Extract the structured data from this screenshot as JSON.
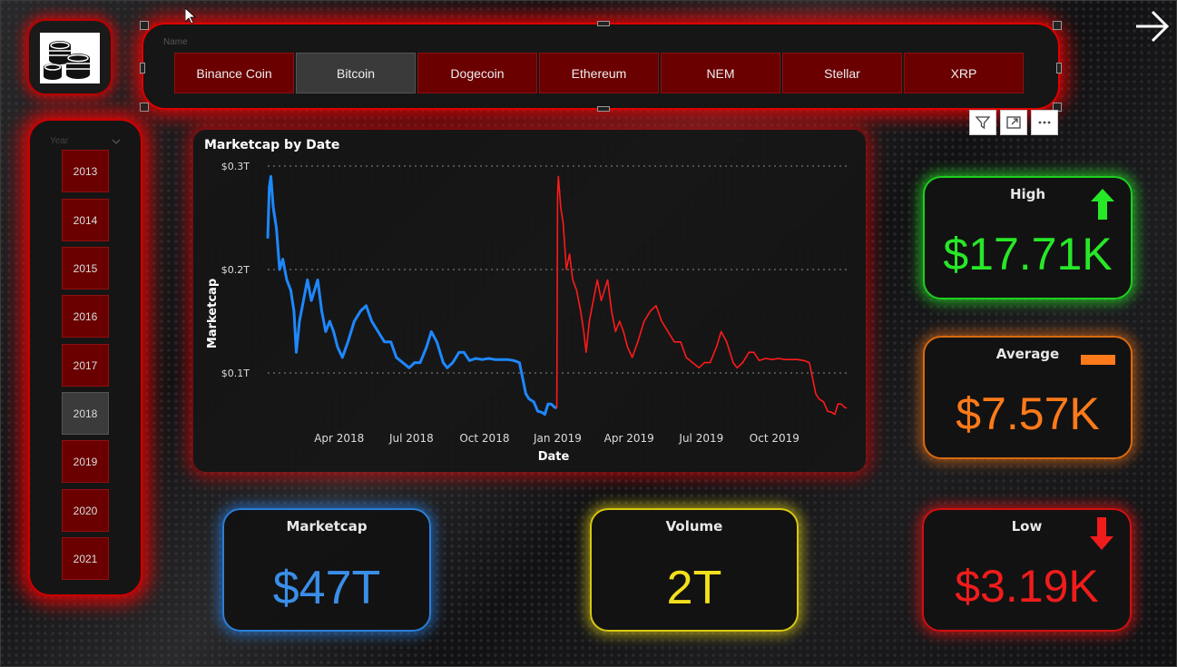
{
  "name_slicer": {
    "header": "Name",
    "options": [
      "Binance Coin",
      "Bitcoin",
      "Dogecoin",
      "Ethereum",
      "NEM",
      "Stellar",
      "XRP"
    ],
    "selected": "Bitcoin"
  },
  "year_slicer": {
    "header": "Year",
    "options": [
      "2013",
      "2014",
      "2015",
      "2016",
      "2017",
      "2018",
      "2019",
      "2020",
      "2021"
    ],
    "selected": "2018"
  },
  "icons": {
    "logo": "coins-icon",
    "next_page": "arrow-right-icon",
    "filter": "filter-icon",
    "focus": "focus-mode-icon",
    "more": "more-options-icon",
    "up": "arrow-up-icon",
    "down": "arrow-down-icon",
    "avg": "dash-icon"
  },
  "kpis": {
    "high": {
      "title": "High",
      "value": "$17.71K",
      "color": "#27e827"
    },
    "average": {
      "title": "Average",
      "value": "$7.57K",
      "color": "#ff7a1a"
    },
    "low": {
      "title": "Low",
      "value": "$3.19K",
      "color": "#f01c1c"
    },
    "marketcap": {
      "title": "Marketcap",
      "value": "$47T",
      "color": "#3a8ee8"
    },
    "volume": {
      "title": "Volume",
      "value": "2T",
      "color": "#f3e01c"
    }
  },
  "chart_data": {
    "type": "line",
    "title": "Marketcap by Date",
    "xlabel": "Date",
    "ylabel": "Marketcap",
    "y_ticks": [
      "$0.1T",
      "$0.2T",
      "$0.3T"
    ],
    "y_tick_values": [
      0.1,
      0.2,
      0.3
    ],
    "ylim": [
      0.05,
      0.3
    ],
    "x_ticks": [
      "Apr 2018",
      "Jul 2018",
      "Oct 2018",
      "Jan 2019",
      "Apr 2019",
      "Jul 2019",
      "Oct 2019"
    ],
    "x_tick_values": [
      "2018-04-01",
      "2018-07-01",
      "2018-10-01",
      "2019-01-01",
      "2019-04-01",
      "2019-07-01",
      "2019-10-01"
    ],
    "grid": true,
    "series": [
      {
        "color": "#1e88ff",
        "points": [
          [
            "2018-01-01",
            0.23
          ],
          [
            "2018-01-03",
            0.28
          ],
          [
            "2018-01-05",
            0.29
          ],
          [
            "2018-01-08",
            0.26
          ],
          [
            "2018-01-12",
            0.24
          ],
          [
            "2018-01-16",
            0.2
          ],
          [
            "2018-01-20",
            0.21
          ],
          [
            "2018-01-25",
            0.19
          ],
          [
            "2018-01-30",
            0.18
          ],
          [
            "2018-02-03",
            0.16
          ],
          [
            "2018-02-06",
            0.12
          ],
          [
            "2018-02-10",
            0.15
          ],
          [
            "2018-02-15",
            0.17
          ],
          [
            "2018-02-20",
            0.19
          ],
          [
            "2018-02-25",
            0.17
          ],
          [
            "2018-03-01",
            0.18
          ],
          [
            "2018-03-05",
            0.19
          ],
          [
            "2018-03-10",
            0.16
          ],
          [
            "2018-03-15",
            0.14
          ],
          [
            "2018-03-20",
            0.15
          ],
          [
            "2018-03-25",
            0.14
          ],
          [
            "2018-03-30",
            0.125
          ],
          [
            "2018-04-05",
            0.115
          ],
          [
            "2018-04-12",
            0.13
          ],
          [
            "2018-04-20",
            0.15
          ],
          [
            "2018-04-28",
            0.16
          ],
          [
            "2018-05-05",
            0.165
          ],
          [
            "2018-05-12",
            0.15
          ],
          [
            "2018-05-20",
            0.14
          ],
          [
            "2018-05-28",
            0.13
          ],
          [
            "2018-06-05",
            0.13
          ],
          [
            "2018-06-12",
            0.115
          ],
          [
            "2018-06-20",
            0.11
          ],
          [
            "2018-06-28",
            0.105
          ],
          [
            "2018-07-05",
            0.11
          ],
          [
            "2018-07-12",
            0.11
          ],
          [
            "2018-07-20",
            0.125
          ],
          [
            "2018-07-26",
            0.14
          ],
          [
            "2018-08-02",
            0.13
          ],
          [
            "2018-08-10",
            0.11
          ],
          [
            "2018-08-15",
            0.105
          ],
          [
            "2018-08-22",
            0.11
          ],
          [
            "2018-08-30",
            0.12
          ],
          [
            "2018-09-05",
            0.12
          ],
          [
            "2018-09-12",
            0.112
          ],
          [
            "2018-09-20",
            0.114
          ],
          [
            "2018-09-28",
            0.113
          ],
          [
            "2018-10-06",
            0.114
          ],
          [
            "2018-10-14",
            0.113
          ],
          [
            "2018-10-22",
            0.113
          ],
          [
            "2018-10-30",
            0.113
          ],
          [
            "2018-11-07",
            0.112
          ],
          [
            "2018-11-14",
            0.11
          ],
          [
            "2018-11-18",
            0.095
          ],
          [
            "2018-11-22",
            0.08
          ],
          [
            "2018-11-26",
            0.075
          ],
          [
            "2018-12-02",
            0.072
          ],
          [
            "2018-12-07",
            0.063
          ],
          [
            "2018-12-12",
            0.062
          ],
          [
            "2018-12-16",
            0.06
          ],
          [
            "2018-12-20",
            0.07
          ],
          [
            "2018-12-24",
            0.07
          ],
          [
            "2018-12-28",
            0.067
          ],
          [
            "2018-12-31",
            0.066
          ]
        ]
      },
      {
        "color": "#ff1a1a",
        "points": [
          [
            "2018-12-31",
            0.066
          ],
          [
            "2019-01-01",
            0.27
          ],
          [
            "2019-01-02",
            0.29
          ],
          [
            "2019-01-05",
            0.26
          ],
          [
            "2019-01-08",
            0.245
          ],
          [
            "2019-01-12",
            0.2
          ],
          [
            "2019-01-16",
            0.215
          ],
          [
            "2019-01-20",
            0.19
          ],
          [
            "2019-01-25",
            0.18
          ],
          [
            "2019-01-30",
            0.16
          ],
          [
            "2019-02-03",
            0.14
          ],
          [
            "2019-02-06",
            0.12
          ],
          [
            "2019-02-10",
            0.15
          ],
          [
            "2019-02-15",
            0.17
          ],
          [
            "2019-02-20",
            0.19
          ],
          [
            "2019-02-25",
            0.17
          ],
          [
            "2019-03-01",
            0.18
          ],
          [
            "2019-03-05",
            0.19
          ],
          [
            "2019-03-10",
            0.16
          ],
          [
            "2019-03-15",
            0.14
          ],
          [
            "2019-03-20",
            0.15
          ],
          [
            "2019-03-25",
            0.14
          ],
          [
            "2019-03-30",
            0.125
          ],
          [
            "2019-04-05",
            0.115
          ],
          [
            "2019-04-12",
            0.13
          ],
          [
            "2019-04-20",
            0.15
          ],
          [
            "2019-04-28",
            0.16
          ],
          [
            "2019-05-05",
            0.165
          ],
          [
            "2019-05-12",
            0.15
          ],
          [
            "2019-05-20",
            0.14
          ],
          [
            "2019-05-28",
            0.13
          ],
          [
            "2019-06-05",
            0.13
          ],
          [
            "2019-06-12",
            0.115
          ],
          [
            "2019-06-20",
            0.11
          ],
          [
            "2019-06-28",
            0.105
          ],
          [
            "2019-07-05",
            0.11
          ],
          [
            "2019-07-12",
            0.11
          ],
          [
            "2019-07-20",
            0.125
          ],
          [
            "2019-07-26",
            0.14
          ],
          [
            "2019-08-02",
            0.13
          ],
          [
            "2019-08-10",
            0.11
          ],
          [
            "2019-08-15",
            0.105
          ],
          [
            "2019-08-22",
            0.11
          ],
          [
            "2019-08-30",
            0.12
          ],
          [
            "2019-09-05",
            0.12
          ],
          [
            "2019-09-12",
            0.112
          ],
          [
            "2019-09-20",
            0.114
          ],
          [
            "2019-09-28",
            0.113
          ],
          [
            "2019-10-06",
            0.114
          ],
          [
            "2019-10-14",
            0.113
          ],
          [
            "2019-10-22",
            0.113
          ],
          [
            "2019-10-30",
            0.113
          ],
          [
            "2019-11-07",
            0.112
          ],
          [
            "2019-11-14",
            0.11
          ],
          [
            "2019-11-18",
            0.095
          ],
          [
            "2019-11-22",
            0.08
          ],
          [
            "2019-11-26",
            0.075
          ],
          [
            "2019-12-02",
            0.072
          ],
          [
            "2019-12-07",
            0.063
          ],
          [
            "2019-12-12",
            0.062
          ],
          [
            "2019-12-16",
            0.06
          ],
          [
            "2019-12-20",
            0.07
          ],
          [
            "2019-12-24",
            0.07
          ],
          [
            "2019-12-28",
            0.067
          ],
          [
            "2019-12-31",
            0.066
          ]
        ]
      }
    ]
  }
}
